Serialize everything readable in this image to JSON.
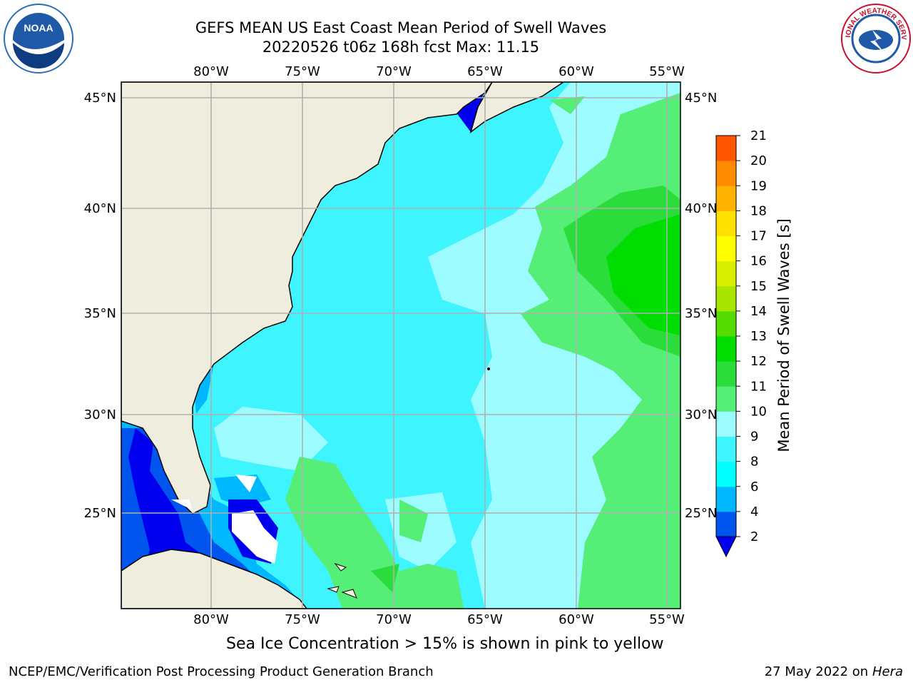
{
  "header": {
    "title": "GEFS MEAN US East Coast Mean Period of Swell Waves",
    "subtitle": "20220526 t06z 168h fcst   Max: 11.15"
  },
  "map": {
    "lon_labels": [
      "80°W",
      "75°W",
      "70°W",
      "65°W",
      "60°W",
      "55°W"
    ],
    "lat_labels": [
      "45°N",
      "40°N",
      "35°N",
      "30°N",
      "25°N"
    ],
    "extent": {
      "lon": [
        -85,
        -54.4
      ],
      "lat": [
        20.5,
        45.8
      ]
    }
  },
  "colorbar": {
    "label": "Mean Period of Swell Waves [s]",
    "ticks": [
      "2",
      "4",
      "6",
      "8",
      "9",
      "10",
      "11",
      "12",
      "13",
      "14",
      "15",
      "16",
      "17",
      "18",
      "19",
      "20",
      "21"
    ],
    "colors": [
      "#0055ee",
      "#00b8ff",
      "#00ffff",
      "#3ef5ff",
      "#9dfcff",
      "#55ee77",
      "#2bdd3a",
      "#00dd00",
      "#55dd00",
      "#a8e600",
      "#d8ef00",
      "#ffff00",
      "#ffe000",
      "#ffb300",
      "#ff8c00",
      "#ff5500",
      "#ff2200",
      "#ff0000"
    ],
    "under_color": "#0000ee"
  },
  "note": "Sea Ice Concentration > 15% is shown in pink to yellow",
  "footer": {
    "left": "NCEP/EMC/Verification Post Processing Product Generation Branch",
    "right_date": "27 May 2022 on",
    "right_host": "Hera"
  },
  "logos": {
    "left": "NOAA",
    "right": "NATIONAL WEATHER SERVICE"
  }
}
